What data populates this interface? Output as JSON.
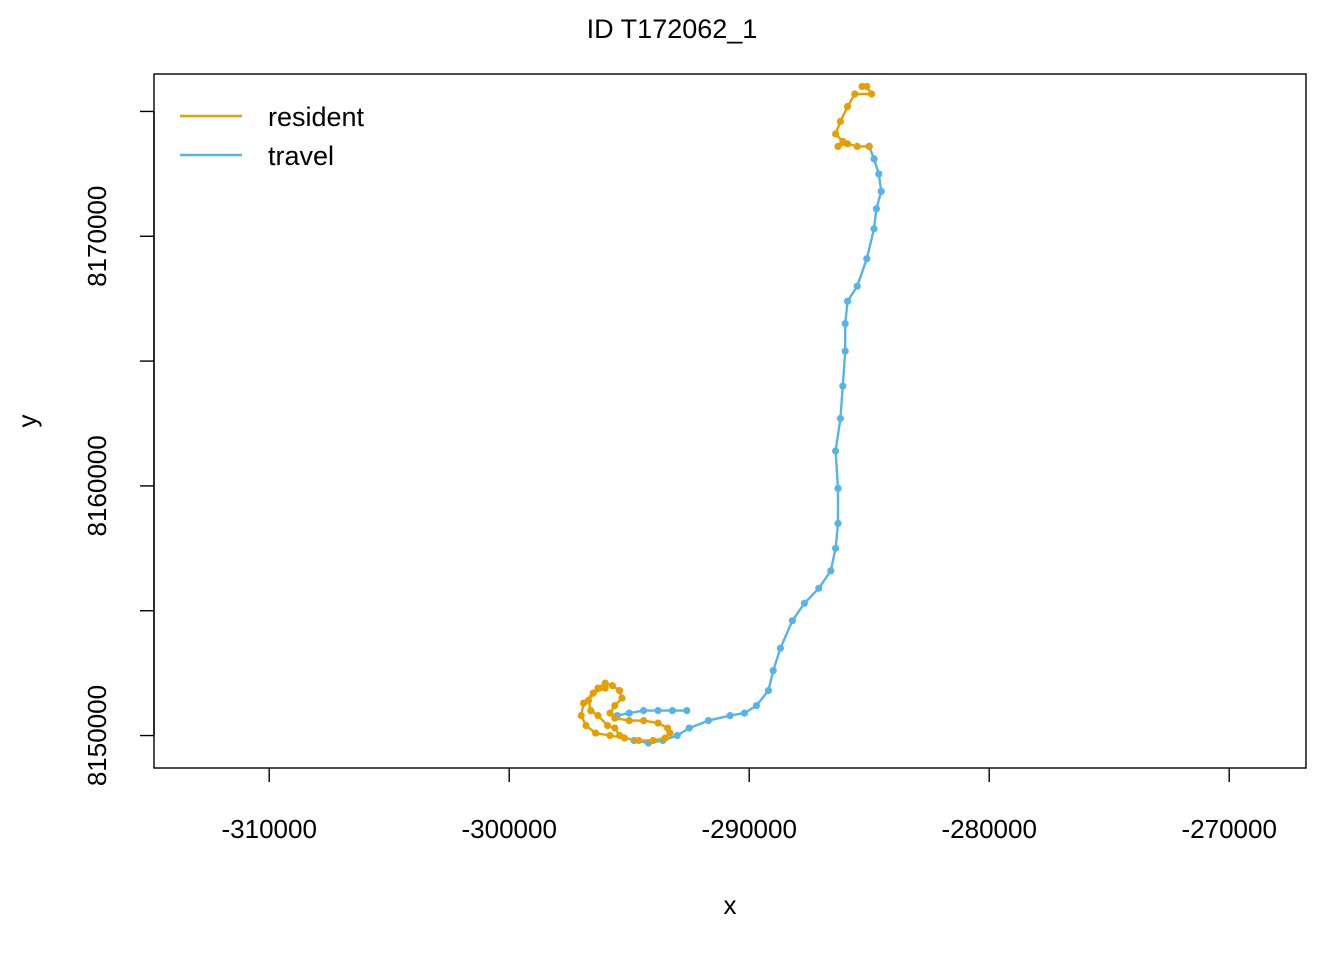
{
  "chart_data": {
    "type": "line",
    "title": "ID T172062_1",
    "xlabel": "x",
    "ylabel": "y",
    "xlim": [
      -314800,
      -266800
    ],
    "ylim": [
      8148700,
      8176500
    ],
    "x_ticks": [
      -310000,
      -300000,
      -290000,
      -280000,
      -270000
    ],
    "x_tick_labels": [
      "-310000",
      "-300000",
      "-290000",
      "-280000",
      "-270000"
    ],
    "y_ticks": [
      8150000,
      8155000,
      8160000,
      8165000,
      8170000,
      8175000
    ],
    "y_tick_labels": [
      "8150000",
      "",
      "8160000",
      "",
      "8170000",
      ""
    ],
    "grid": false,
    "legend_position": "top-left",
    "colors": {
      "resident": "#E69F00",
      "travel": "#56B4E9"
    },
    "series": [
      {
        "name": "resident",
        "color": "#E69F00",
        "segments": [
          [
            [
              -285300,
              8176000
            ],
            [
              -285100,
              8176000
            ],
            [
              -284900,
              8175700
            ],
            [
              -285600,
              8175700
            ],
            [
              -285900,
              8175200
            ],
            [
              -286200,
              8174600
            ],
            [
              -286400,
              8174100
            ],
            [
              -286100,
              8173800
            ],
            [
              -286300,
              8173600
            ],
            [
              -285900,
              8173700
            ],
            [
              -285500,
              8173600
            ],
            [
              -285000,
              8173600
            ]
          ],
          [
            [
              -295400,
              8150000
            ],
            [
              -295600,
              8150300
            ],
            [
              -295900,
              8150400
            ],
            [
              -296300,
              8150800
            ],
            [
              -296600,
              8151000
            ],
            [
              -296700,
              8151400
            ],
            [
              -296300,
              8151900
            ],
            [
              -296000,
              8152100
            ],
            [
              -295700,
              8152000
            ],
            [
              -295400,
              8151800
            ],
            [
              -295300,
              8151500
            ],
            [
              -295600,
              8151200
            ],
            [
              -295800,
              8150900
            ],
            [
              -295600,
              8150700
            ],
            [
              -295000,
              8150600
            ],
            [
              -294400,
              8150600
            ],
            [
              -293800,
              8150500
            ],
            [
              -293400,
              8150300
            ],
            [
              -293300,
              8150100
            ],
            [
              -293500,
              8149900
            ],
            [
              -294000,
              8149800
            ],
            [
              -294600,
              8149800
            ],
            [
              -295200,
              8149900
            ],
            [
              -295800,
              8150000
            ],
            [
              -296400,
              8150100
            ],
            [
              -296800,
              8150400
            ],
            [
              -297000,
              8150800
            ],
            [
              -296900,
              8151300
            ],
            [
              -296500,
              8151700
            ],
            [
              -296000,
              8151900
            ]
          ]
        ]
      },
      {
        "name": "travel",
        "color": "#56B4E9",
        "segments": [
          [
            [
              -292600,
              8151000
            ],
            [
              -293200,
              8151000
            ],
            [
              -293800,
              8151000
            ],
            [
              -294400,
              8151000
            ],
            [
              -295000,
              8150900
            ],
            [
              -295500,
              8150800
            ]
          ],
          [
            [
              -294800,
              8149800
            ],
            [
              -294200,
              8149700
            ],
            [
              -293600,
              8149800
            ],
            [
              -293000,
              8150000
            ],
            [
              -292500,
              8150300
            ],
            [
              -291700,
              8150600
            ],
            [
              -290800,
              8150800
            ],
            [
              -290200,
              8150900
            ],
            [
              -289700,
              8151200
            ],
            [
              -289200,
              8151800
            ],
            [
              -289000,
              8152600
            ],
            [
              -288700,
              8153500
            ],
            [
              -288200,
              8154600
            ],
            [
              -287700,
              8155300
            ],
            [
              -287100,
              8155900
            ],
            [
              -286600,
              8156600
            ],
            [
              -286400,
              8157500
            ],
            [
              -286300,
              8158500
            ],
            [
              -286300,
              8159900
            ],
            [
              -286400,
              8161400
            ],
            [
              -286200,
              8162700
            ],
            [
              -286100,
              8164000
            ],
            [
              -286000,
              8165400
            ],
            [
              -286000,
              8166500
            ],
            [
              -285900,
              8167400
            ],
            [
              -285500,
              8168000
            ],
            [
              -285100,
              8169100
            ],
            [
              -284800,
              8170300
            ],
            [
              -284700,
              8171100
            ],
            [
              -284500,
              8171800
            ],
            [
              -284600,
              8172500
            ],
            [
              -284800,
              8173100
            ],
            [
              -285000,
              8173600
            ]
          ]
        ]
      }
    ]
  }
}
